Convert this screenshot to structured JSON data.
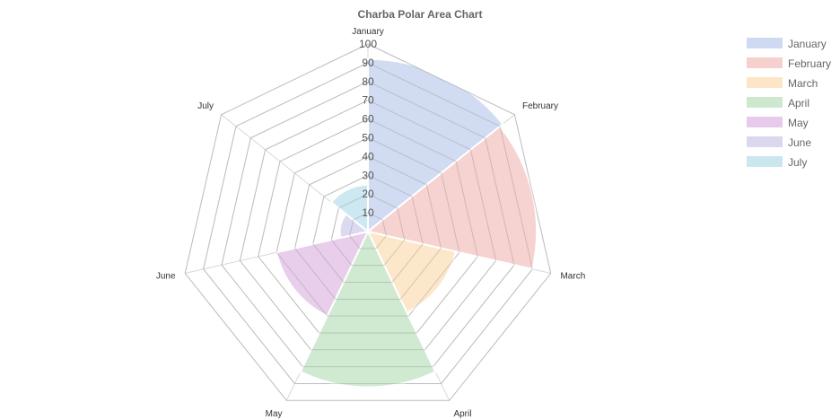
{
  "chart_data": {
    "type": "polarArea",
    "title": "Charba Polar Area Chart",
    "categories": [
      "January",
      "February",
      "March",
      "April",
      "May",
      "June",
      "July"
    ],
    "values": [
      92,
      90,
      48,
      83,
      50,
      15,
      25
    ],
    "colors": [
      "#cfdaf2",
      "#f6d0cd",
      "#fde6c7",
      "#cee8cf",
      "#e7cbea",
      "#d9d8ef",
      "#cae7f0"
    ],
    "r_axis": {
      "min": 0,
      "max": 100,
      "step": 10,
      "ticks": [
        "10",
        "20",
        "30",
        "40",
        "50",
        "60",
        "70",
        "80",
        "90",
        "100"
      ]
    },
    "grid_shape": "polygon",
    "legend_position": "right",
    "legend": [
      "January",
      "February",
      "March",
      "April",
      "May",
      "June",
      "July"
    ]
  }
}
